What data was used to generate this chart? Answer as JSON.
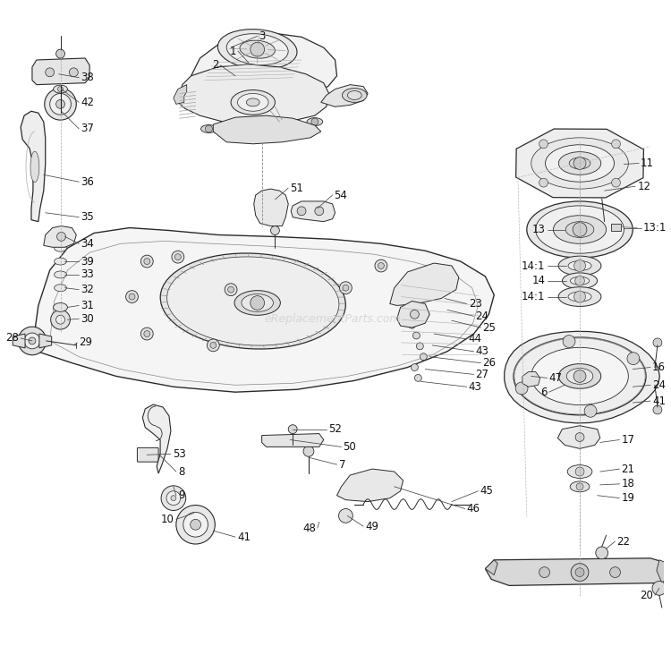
{
  "bg_color": "#ffffff",
  "line_color": "#2a2a2a",
  "light_gray": "#e8e8e8",
  "mid_gray": "#d0d0d0",
  "dark_gray": "#555555",
  "watermark": "eReplacementParts.com",
  "watermark_color": "#cccccc",
  "figsize": [
    7.5,
    7.51
  ],
  "dpi": 100
}
